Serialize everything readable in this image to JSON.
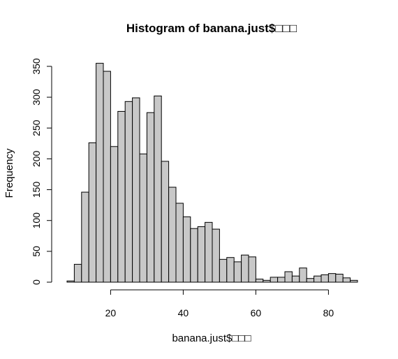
{
  "chart_data": {
    "type": "bar",
    "title": "Histogram of banana.just$□□□",
    "xlabel": "banana.just$□□□",
    "ylabel": "Frequency",
    "bin_width": 2,
    "bin_start": 8,
    "xlim": [
      8,
      88
    ],
    "ylim": [
      0,
      350
    ],
    "x_ticks": [
      20,
      40,
      60,
      80
    ],
    "y_ticks": [
      0,
      50,
      100,
      150,
      200,
      250,
      300,
      350
    ],
    "values": [
      2,
      29,
      146,
      226,
      355,
      342,
      220,
      277,
      293,
      299,
      208,
      275,
      302,
      196,
      154,
      128,
      106,
      87,
      90,
      97,
      86,
      37,
      40,
      33,
      44,
      41,
      5,
      3,
      8,
      8,
      17,
      10,
      23,
      6,
      10,
      12,
      14,
      13,
      7,
      3
    ],
    "colors": {
      "bar_fill": "#c8c8c8",
      "bar_stroke": "#000000"
    },
    "grid": false
  }
}
